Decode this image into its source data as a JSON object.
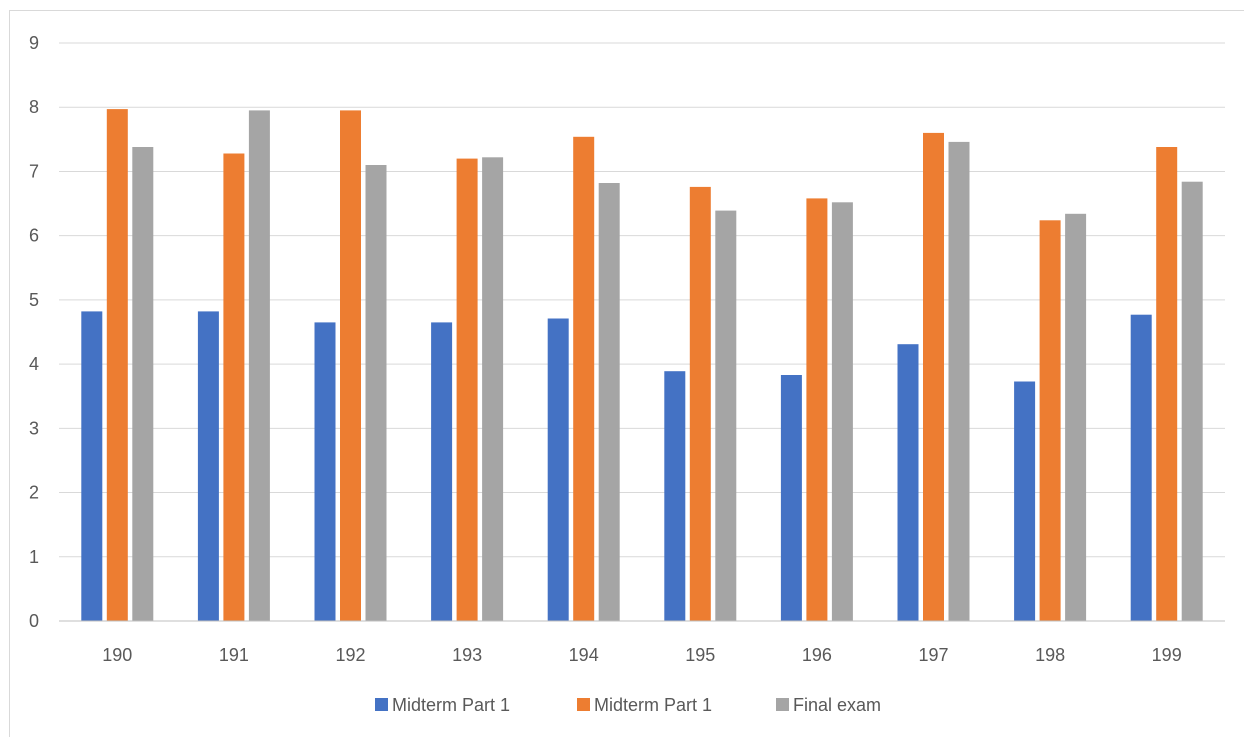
{
  "chart_data": {
    "type": "bar",
    "title": "",
    "xlabel": "",
    "ylabel": "",
    "categories": [
      "190",
      "191",
      "192",
      "193",
      "194",
      "195",
      "196",
      "197",
      "198",
      "199"
    ],
    "ylim": [
      0,
      9
    ],
    "yticks": [
      "0",
      "1",
      "2",
      "3",
      "4",
      "5",
      "6",
      "7",
      "8",
      "9"
    ],
    "grid": true,
    "legend_position": "bottom",
    "series": [
      {
        "name": "Midterm Part 1",
        "color": "#4472c4",
        "values": [
          4.82,
          4.82,
          4.65,
          4.65,
          4.71,
          3.89,
          3.83,
          4.31,
          3.73,
          4.77
        ]
      },
      {
        "name": "Midterm Part 1",
        "color": "#ed7d31",
        "values": [
          7.97,
          7.28,
          7.95,
          7.2,
          7.54,
          6.76,
          6.58,
          7.6,
          6.24,
          7.38
        ]
      },
      {
        "name": "Final exam",
        "color": "#a5a5a5",
        "values": [
          7.38,
          7.95,
          7.1,
          7.22,
          6.82,
          6.39,
          6.52,
          7.46,
          6.34,
          6.84
        ]
      }
    ]
  }
}
